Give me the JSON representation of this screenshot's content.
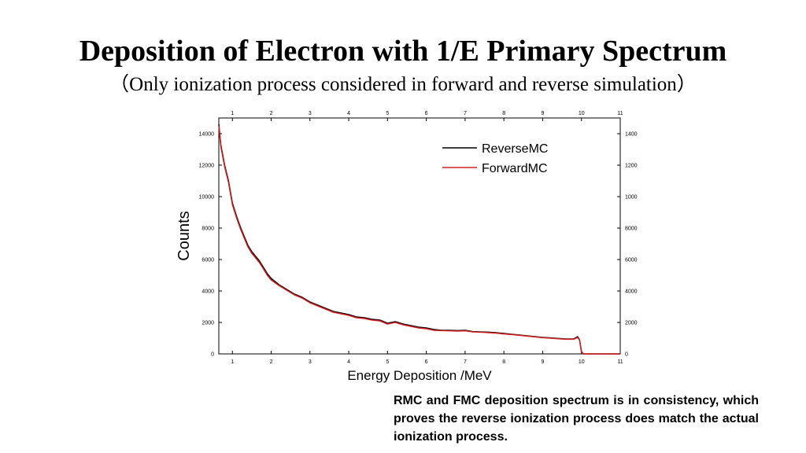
{
  "slide": {
    "title": "Deposition  of Electron with 1/E Primary Spectrum",
    "subtitle": "（Only ionization process considered in forward and reverse simulation）",
    "caption": "RMC and FMC deposition spectrum is in consistency, which proves the reverse ionization process does match the actual ionization process."
  },
  "chart_data": {
    "type": "line",
    "xlabel": "Energy Deposition /MeV",
    "ylabel": "Counts",
    "xlim": [
      0.65,
      11
    ],
    "ylim": [
      0,
      15000
    ],
    "x_ticks": [
      1,
      2,
      3,
      4,
      5,
      6,
      7,
      8,
      9,
      10,
      11
    ],
    "y_ticks": [
      0,
      2000,
      4000,
      6000,
      8000,
      10000,
      12000,
      14000
    ],
    "legend_position": "top-right",
    "grid": false,
    "x": [
      0.65,
      0.7,
      0.8,
      0.9,
      1.0,
      1.1,
      1.2,
      1.3,
      1.4,
      1.5,
      1.6,
      1.7,
      1.8,
      1.9,
      2.0,
      2.2,
      2.4,
      2.6,
      2.8,
      3.0,
      3.2,
      3.4,
      3.6,
      3.8,
      4.0,
      4.2,
      4.4,
      4.6,
      4.8,
      5.0,
      5.2,
      5.4,
      5.6,
      5.8,
      6.0,
      6.2,
      6.4,
      6.6,
      6.8,
      7.0,
      7.2,
      7.4,
      7.6,
      7.8,
      8.0,
      8.2,
      8.4,
      8.6,
      8.8,
      9.0,
      9.2,
      9.4,
      9.6,
      9.8,
      9.9,
      9.95,
      10.0,
      10.05,
      10.2,
      10.5,
      11.0
    ],
    "series": [
      {
        "name": "ReverseMC",
        "color": "#000000",
        "values": [
          14600,
          13300,
          12000,
          11000,
          9600,
          8800,
          8100,
          7500,
          6900,
          6500,
          6200,
          5900,
          5500,
          5100,
          4800,
          4400,
          4100,
          3800,
          3600,
          3300,
          3100,
          2900,
          2700,
          2600,
          2500,
          2350,
          2300,
          2200,
          2150,
          1950,
          2050,
          1900,
          1800,
          1700,
          1650,
          1550,
          1500,
          1500,
          1480,
          1500,
          1420,
          1400,
          1380,
          1350,
          1300,
          1250,
          1200,
          1150,
          1100,
          1050,
          1020,
          980,
          950,
          950,
          1100,
          900,
          150,
          0,
          0,
          0,
          0
        ]
      },
      {
        "name": "ForwardMC",
        "color": "#d42020",
        "values": [
          14500,
          13200,
          11900,
          10900,
          9500,
          8700,
          8000,
          7400,
          6800,
          6400,
          6100,
          5800,
          5400,
          5000,
          4700,
          4350,
          4050,
          3750,
          3550,
          3250,
          3050,
          2850,
          2650,
          2550,
          2450,
          2300,
          2250,
          2150,
          2100,
          1900,
          2000,
          1850,
          1750,
          1650,
          1600,
          1500,
          1480,
          1470,
          1450,
          1470,
          1400,
          1380,
          1350,
          1320,
          1270,
          1230,
          1180,
          1130,
          1080,
          1030,
          1000,
          960,
          930,
          930,
          1050,
          880,
          120,
          0,
          0,
          0,
          0
        ]
      }
    ]
  }
}
